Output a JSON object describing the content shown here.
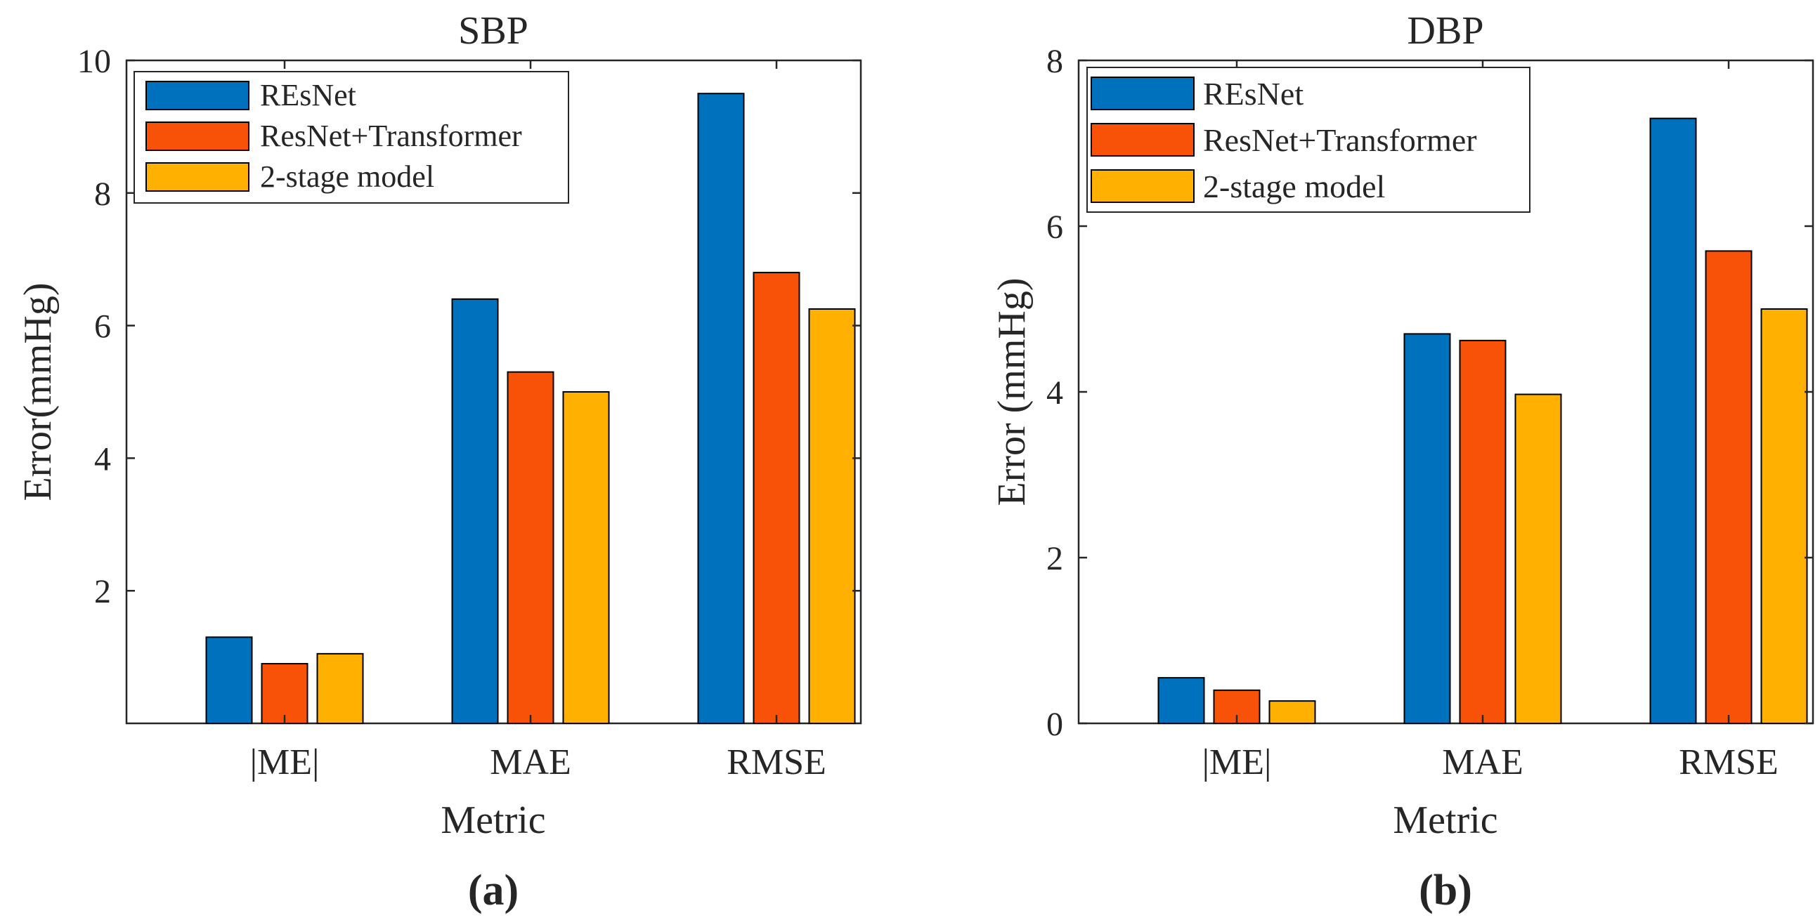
{
  "chart_data": [
    {
      "panel_label": "(a)",
      "type": "bar",
      "title": "SBP",
      "xlabel": "Metric",
      "ylabel": "Error(mmHg)",
      "categories": [
        "|ME|",
        "MAE",
        "RMSE"
      ],
      "ylim": [
        0,
        10
      ],
      "yticks": [
        2,
        4,
        6,
        8,
        10
      ],
      "ytick_labels": [
        "2",
        "4",
        "6",
        "8",
        "10"
      ],
      "legend_position": "top-left",
      "series": [
        {
          "name": "REsNet",
          "color": "#0072BD",
          "values": [
            1.3,
            6.4,
            9.5
          ]
        },
        {
          "name": "ResNet+Transformer",
          "color": "#F85208",
          "values": [
            0.9,
            5.3,
            6.8
          ]
        },
        {
          "name": "2-stage model",
          "color": "#FFB000",
          "values": [
            1.05,
            5.0,
            6.25
          ]
        }
      ]
    },
    {
      "panel_label": "(b)",
      "type": "bar",
      "title": "DBP",
      "xlabel": "Metric",
      "ylabel": "Error (mmHg)",
      "categories": [
        "|ME|",
        "MAE",
        "RMSE"
      ],
      "ylim": [
        0,
        8
      ],
      "yticks": [
        0,
        2,
        4,
        6,
        8
      ],
      "ytick_labels": [
        "0",
        "2",
        "4",
        "6",
        "8"
      ],
      "legend_position": "top-left",
      "series": [
        {
          "name": "REsNet",
          "color": "#0072BD",
          "values": [
            0.55,
            4.7,
            7.3
          ]
        },
        {
          "name": "ResNet+Transformer",
          "color": "#F85208",
          "values": [
            0.4,
            4.62,
            5.7
          ]
        },
        {
          "name": "2-stage model",
          "color": "#FFB000",
          "values": [
            0.27,
            3.97,
            5.0
          ]
        }
      ]
    }
  ]
}
